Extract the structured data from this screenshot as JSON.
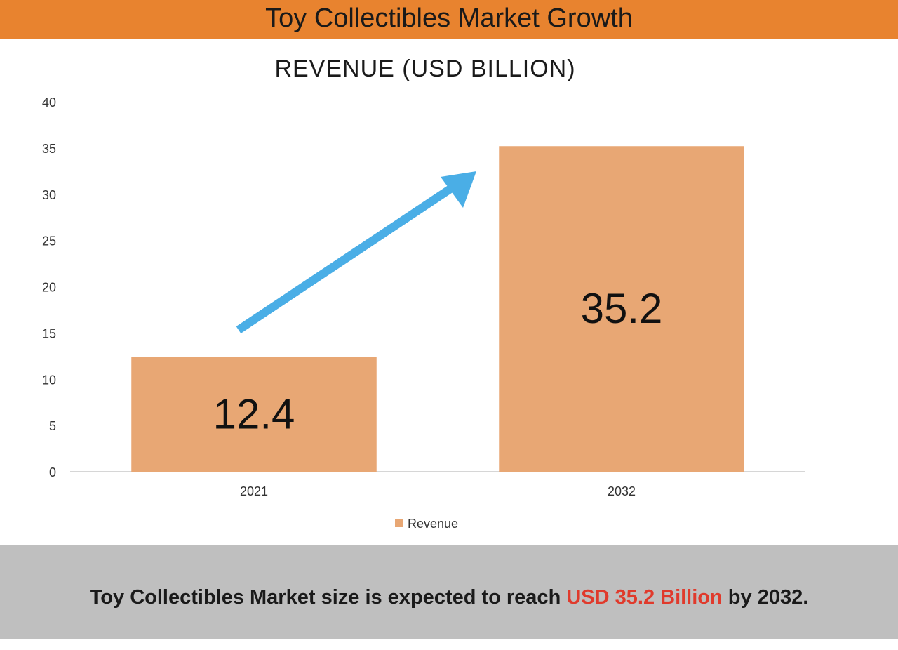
{
  "header": {
    "title": "Toy Collectibles Market Growth"
  },
  "chart_data": {
    "type": "bar",
    "title": "REVENUE (USD BILLION)",
    "categories": [
      "2021",
      "2032"
    ],
    "series": [
      {
        "name": "Revenue",
        "values": [
          12.4,
          35.2
        ]
      }
    ],
    "data_labels": [
      "12.4",
      "35.2"
    ],
    "ylim": [
      0,
      40
    ],
    "yticks": [
      0,
      5,
      10,
      15,
      20,
      25,
      30,
      35,
      40
    ],
    "xlabel": "",
    "ylabel": "",
    "grid": false,
    "legend": {
      "position": "bottom",
      "entries": [
        "Revenue"
      ]
    },
    "annotations": [
      {
        "type": "growth-arrow",
        "description": "upward arrow from 2021 bar to 2032 bar"
      }
    ]
  },
  "colors": {
    "bar": "#e8a774",
    "arrow": "#4aaee6",
    "header_bg": "#e8832f",
    "footer_bg": "#bfbfbf",
    "highlight": "#e03a2c"
  },
  "footer": {
    "prefix": "Toy Collectibles Market size is expected to reach ",
    "highlight": "USD 35.2 Billion",
    "suffix": " by 2032."
  }
}
